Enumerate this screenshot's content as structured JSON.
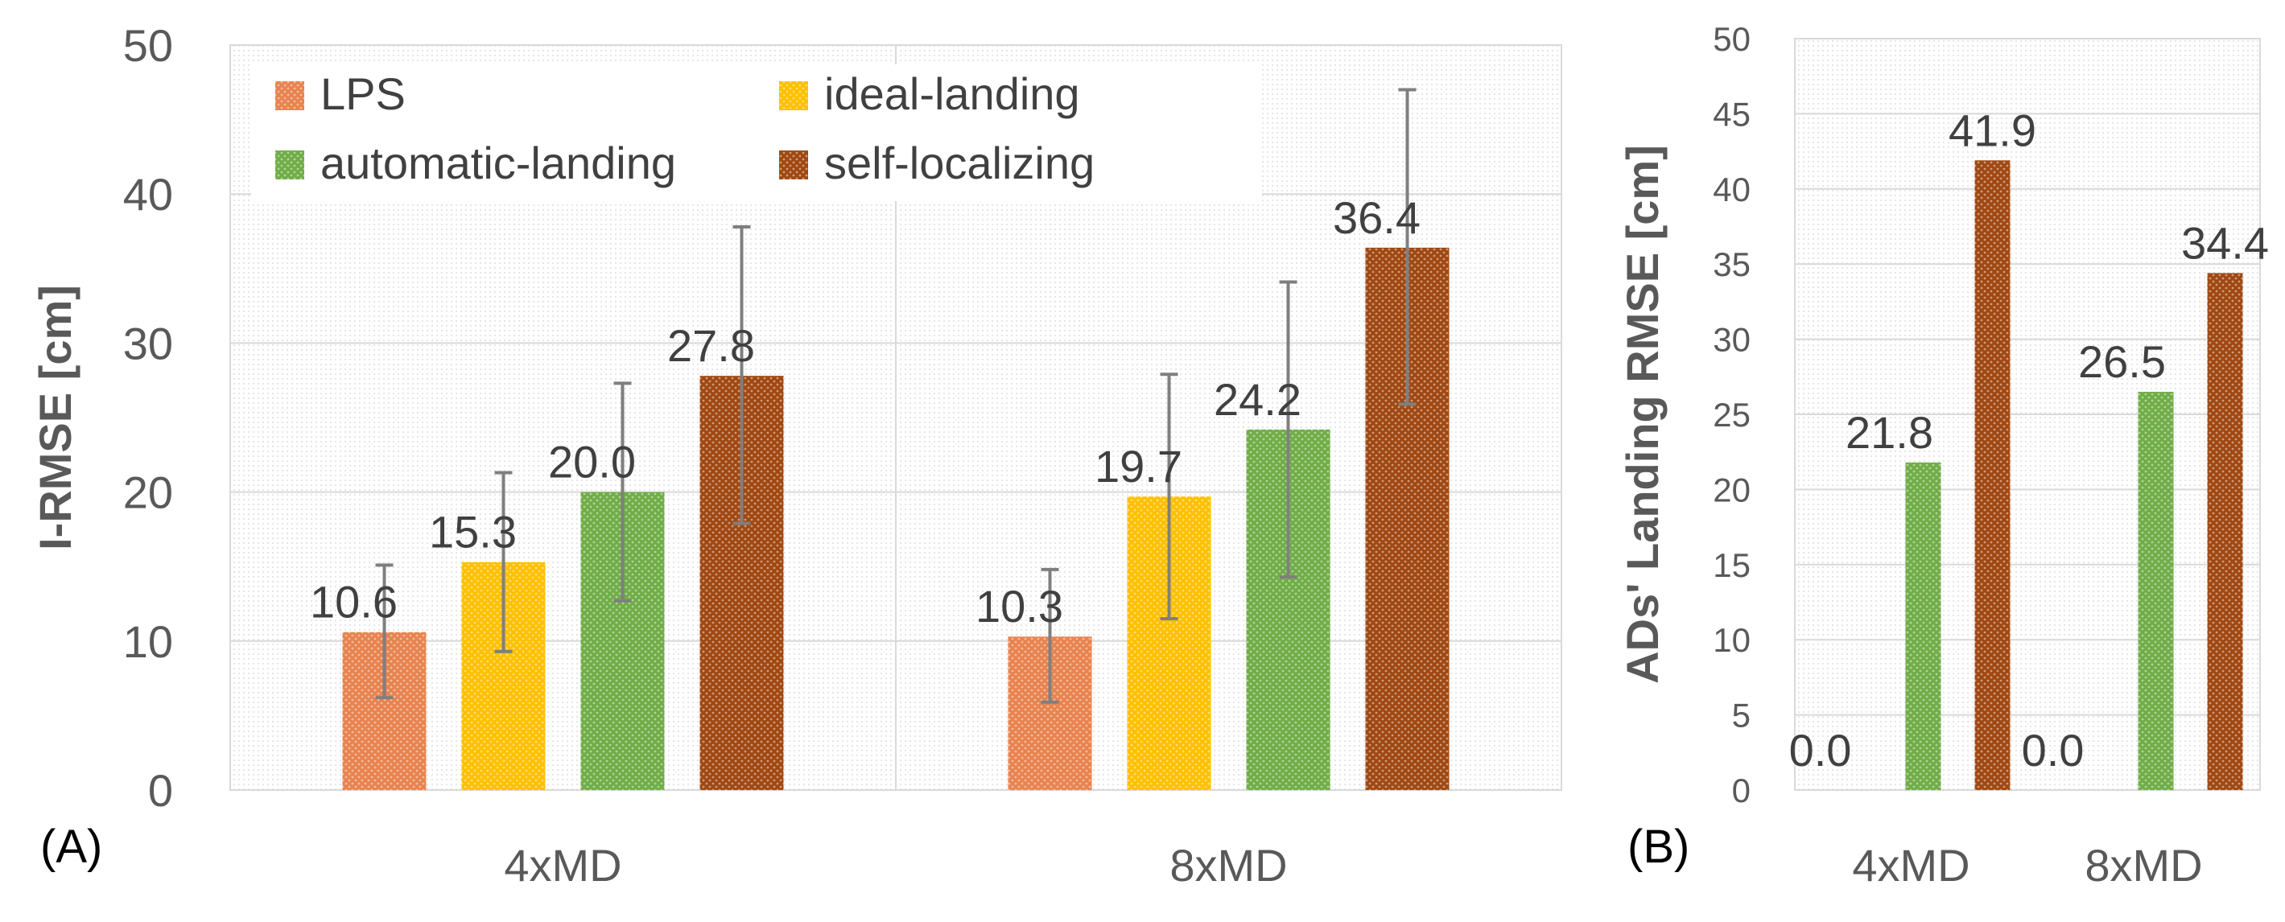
{
  "chart_data": [
    {
      "panel_label": "(A)",
      "type": "bar",
      "ylabel": "I-RMSE [cm]",
      "ylim": [
        0,
        50
      ],
      "yticks": [
        0,
        10,
        20,
        30,
        40,
        50
      ],
      "grid": true,
      "legend_position": "top-left",
      "categories": [
        "4xMD",
        "8xMD"
      ],
      "series": [
        {
          "name": "LPS",
          "values": [
            10.6,
            10.3
          ],
          "labels": [
            "10.6",
            "10.3"
          ],
          "error": [
            [
              6.2,
              15.1
            ],
            [
              5.9,
              14.8
            ]
          ],
          "color": "#E8834F"
        },
        {
          "name": "ideal-landing",
          "values": [
            15.3,
            19.7
          ],
          "labels": [
            "15.3",
            "19.7"
          ],
          "error": [
            [
              9.3,
              21.3
            ],
            [
              11.5,
              27.9
            ]
          ],
          "color": "#FFC000"
        },
        {
          "name": "automatic-landing",
          "values": [
            20.0,
            24.2
          ],
          "labels": [
            "20.0",
            "24.2"
          ],
          "error": [
            [
              12.7,
              27.3
            ],
            [
              14.3,
              34.1
            ]
          ],
          "color": "#70AD47"
        },
        {
          "name": "self-localizing",
          "values": [
            27.8,
            36.4
          ],
          "labels": [
            "27.8",
            "36.4"
          ],
          "error": [
            [
              17.9,
              37.8
            ],
            [
              25.9,
              47.0
            ]
          ],
          "color": "#A04812"
        }
      ]
    },
    {
      "panel_label": "(B)",
      "type": "bar",
      "ylabel": "ADs' Landing RMSE [cm]",
      "ylim": [
        0,
        50
      ],
      "yticks": [
        0,
        5,
        10,
        15,
        20,
        25,
        30,
        35,
        40,
        45,
        50
      ],
      "grid": true,
      "categories": [
        "4xMD",
        "8xMD"
      ],
      "series": [
        {
          "name": "ideal-landing",
          "values": [
            0.0,
            0.0
          ],
          "labels": [
            "0.0",
            "0.0"
          ],
          "color": "#FFC000"
        },
        {
          "name": "automatic-landing",
          "values": [
            21.8,
            26.5
          ],
          "labels": [
            "21.8",
            "26.5"
          ],
          "color": "#70AD47"
        },
        {
          "name": "self-localizing",
          "values": [
            41.9,
            34.4
          ],
          "labels": [
            "41.9",
            "34.4"
          ],
          "color": "#A04812"
        }
      ]
    }
  ]
}
